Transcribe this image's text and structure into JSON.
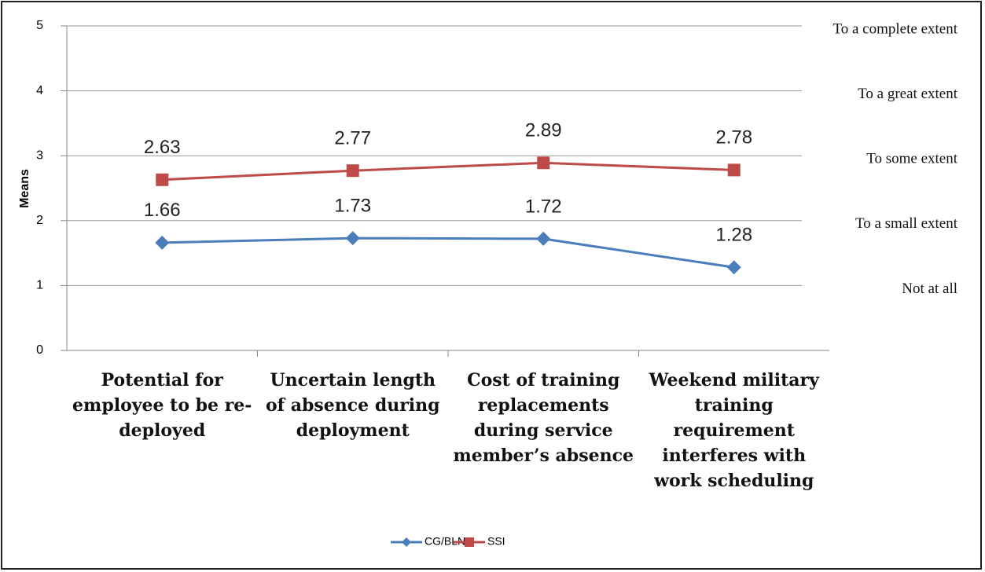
{
  "chart_data": {
    "type": "line",
    "y_label": "Means",
    "categories": [
      "Potential for employee to be re-deployed",
      "Uncertain length of absence during deployment",
      "Cost of training replacements during service member’s absence",
      "Weekend military training requirement interferes with work scheduling"
    ],
    "series": [
      {
        "name": "CG/BLN",
        "color": "#4a7ebb",
        "values": [
          1.66,
          1.73,
          1.72,
          1.28
        ]
      },
      {
        "name": "SSI",
        "color": "#be4b48",
        "values": [
          2.63,
          2.77,
          2.89,
          2.78
        ]
      }
    ],
    "ylim": [
      0,
      5
    ],
    "yticks": [
      0,
      1,
      2,
      3,
      4,
      5
    ],
    "grid": true,
    "annotations": [
      "To a complete extent",
      "To a great extent",
      "To some extent",
      "To a small extent",
      "Not at all"
    ],
    "legend": "bottom"
  }
}
